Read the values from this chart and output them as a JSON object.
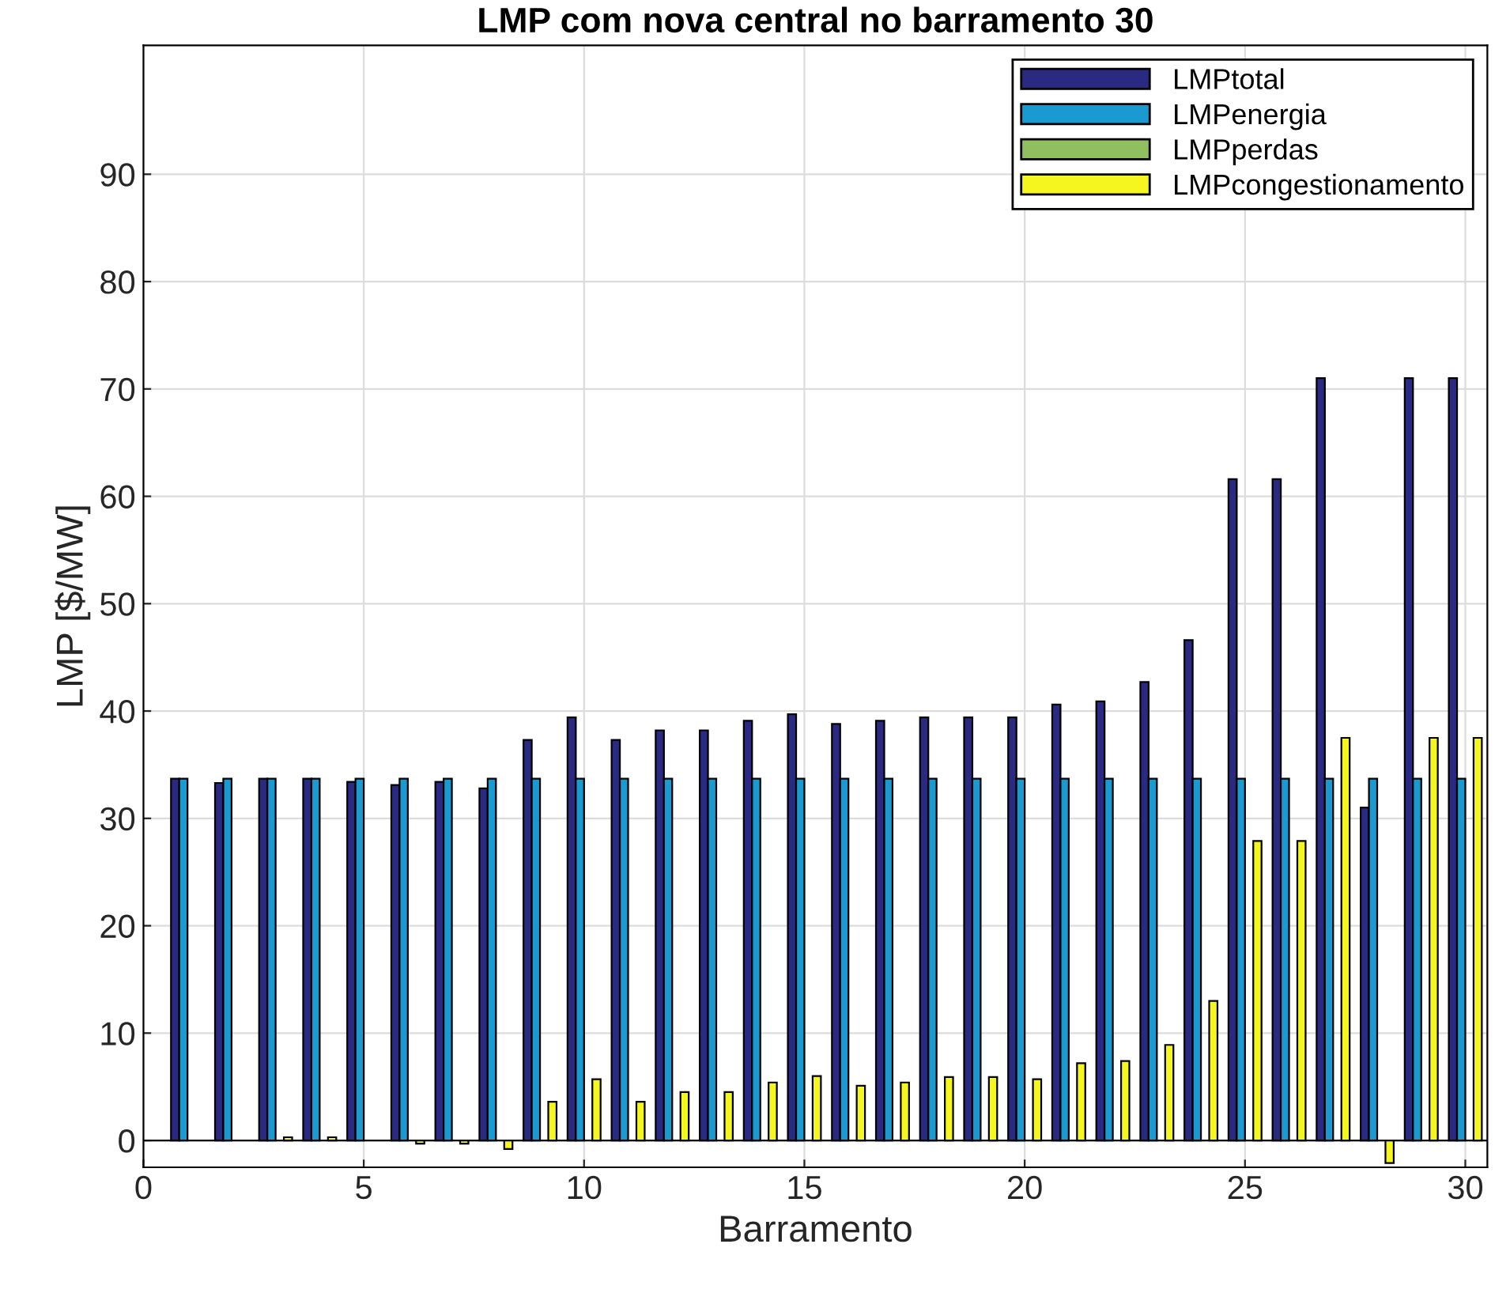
{
  "chart_data": {
    "type": "bar",
    "title": "LMP com nova central no barramento 30",
    "xlabel": "Barramento",
    "ylabel": "LMP [$/MW]",
    "x": [
      1,
      2,
      3,
      4,
      5,
      6,
      7,
      8,
      9,
      10,
      11,
      12,
      13,
      14,
      15,
      16,
      17,
      18,
      19,
      20,
      21,
      22,
      23,
      24,
      25,
      26,
      27,
      28,
      29,
      30
    ],
    "series": [
      {
        "name": "LMPtotal",
        "color": "#2b2a82",
        "values": [
          33.7,
          33.3,
          33.7,
          33.7,
          33.4,
          33.1,
          33.4,
          32.8,
          37.3,
          39.4,
          37.3,
          38.2,
          38.2,
          39.1,
          39.7,
          38.8,
          39.1,
          39.4,
          39.4,
          39.4,
          40.6,
          40.9,
          42.7,
          46.6,
          61.6,
          61.6,
          71,
          31,
          71,
          71
        ]
      },
      {
        "name": "LMPenergia",
        "color": "#1a9ad0",
        "values": [
          33.7,
          33.7,
          33.7,
          33.7,
          33.7,
          33.7,
          33.7,
          33.7,
          33.7,
          33.7,
          33.7,
          33.7,
          33.7,
          33.7,
          33.7,
          33.7,
          33.7,
          33.7,
          33.7,
          33.7,
          33.7,
          33.7,
          33.7,
          33.7,
          33.7,
          33.7,
          33.7,
          33.7,
          33.7,
          33.7
        ]
      },
      {
        "name": "LMPperdas",
        "color": "#8fbf5f",
        "values": [
          null,
          null,
          null,
          null,
          null,
          null,
          null,
          null,
          null,
          null,
          null,
          null,
          null,
          null,
          null,
          null,
          null,
          null,
          null,
          null,
          null,
          null,
          null,
          null,
          null,
          null,
          null,
          null,
          null,
          null
        ]
      },
      {
        "name": "LMPcongestionamento",
        "color": "#f5f520",
        "values": [
          null,
          null,
          0.3,
          0.3,
          null,
          -0.3,
          -0.3,
          -0.8,
          3.6,
          5.7,
          3.6,
          4.5,
          4.5,
          5.4,
          6.0,
          5.1,
          5.4,
          5.9,
          5.9,
          5.7,
          7.2,
          7.4,
          8.9,
          13.0,
          27.9,
          27.9,
          37.5,
          -2.1,
          37.5,
          37.5
        ]
      }
    ],
    "xlim": [
      0,
      30.5
    ],
    "xticks": [
      0,
      5,
      10,
      15,
      20,
      25,
      30
    ],
    "ylim": [
      -2.5,
      102
    ],
    "yticks": [
      0,
      10,
      20,
      30,
      40,
      50,
      60,
      70,
      80,
      90
    ],
    "grid": true,
    "legend": "top right"
  }
}
